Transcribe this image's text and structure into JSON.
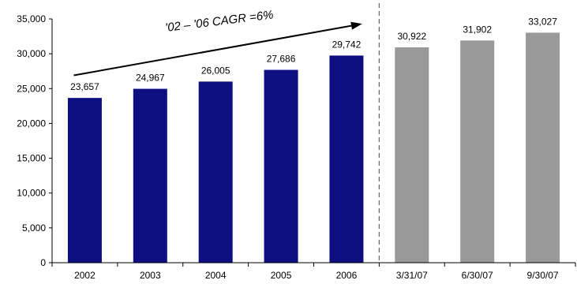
{
  "chart_data": {
    "type": "bar",
    "categories": [
      "2002",
      "2003",
      "2004",
      "2005",
      "2006",
      "3/31/07",
      "6/30/07",
      "9/30/07"
    ],
    "values": [
      23657,
      24967,
      26005,
      27686,
      29742,
      30922,
      31902,
      33027
    ],
    "data_labels": [
      "23,657",
      "24,967",
      "26,005",
      "27,686",
      "29,742",
      "30,922",
      "31,902",
      "33,027"
    ],
    "bar_colors": [
      "#0d0f80",
      "#0d0f80",
      "#0d0f80",
      "#0d0f80",
      "#0d0f80",
      "#999999",
      "#999999",
      "#999999"
    ],
    "ylim": [
      0,
      35000
    ],
    "yticks": [
      0,
      5000,
      10000,
      15000,
      20000,
      25000,
      30000,
      35000
    ],
    "ytick_labels": [
      "0",
      "5,000",
      "10,000",
      "15,000",
      "20,000",
      "25,000",
      "30,000",
      "35,000"
    ],
    "grid": false,
    "divider_after_category": "2006",
    "annotation": "'02 – '06 CAGR =6%"
  }
}
